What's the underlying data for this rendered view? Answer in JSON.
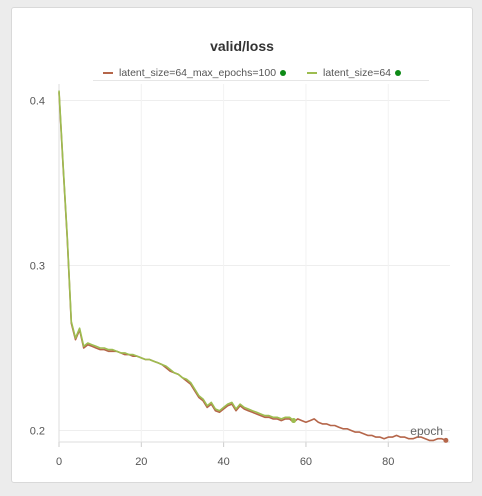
{
  "chart_data": {
    "type": "line",
    "title": "valid/loss",
    "xlabel": "epoch",
    "ylabel": "",
    "xlim": [
      0,
      95
    ],
    "ylim": [
      0.193,
      0.41
    ],
    "xticks": [
      0,
      20,
      40,
      60,
      80
    ],
    "yticks": [
      0.2,
      0.3,
      0.4
    ],
    "ytick_labels": [
      "0.2",
      "0.3",
      "0.4"
    ],
    "grid": true,
    "legend_position": "top",
    "series": [
      {
        "name": "latent_size=64_max_epochs=100",
        "color": "#b5664a",
        "x": [
          0,
          1,
          2,
          3,
          4,
          5,
          6,
          7,
          8,
          9,
          10,
          11,
          12,
          13,
          14,
          15,
          16,
          17,
          18,
          19,
          20,
          21,
          22,
          23,
          24,
          25,
          26,
          27,
          28,
          29,
          30,
          31,
          32,
          33,
          34,
          35,
          36,
          37,
          38,
          39,
          40,
          41,
          42,
          43,
          44,
          45,
          46,
          47,
          48,
          49,
          50,
          51,
          52,
          53,
          54,
          55,
          56,
          57,
          58,
          59,
          60,
          61,
          62,
          63,
          64,
          65,
          66,
          67,
          68,
          69,
          70,
          71,
          72,
          73,
          74,
          75,
          76,
          77,
          78,
          79,
          80,
          81,
          82,
          83,
          84,
          85,
          86,
          87,
          88,
          89,
          90,
          91,
          92,
          93,
          94
        ],
        "y": [
          0.405,
          0.36,
          0.317,
          0.265,
          0.255,
          0.261,
          0.25,
          0.252,
          0.251,
          0.25,
          0.249,
          0.249,
          0.248,
          0.248,
          0.248,
          0.247,
          0.246,
          0.246,
          0.245,
          0.245,
          0.244,
          0.243,
          0.243,
          0.242,
          0.241,
          0.24,
          0.238,
          0.236,
          0.235,
          0.234,
          0.232,
          0.23,
          0.228,
          0.224,
          0.22,
          0.218,
          0.214,
          0.216,
          0.212,
          0.211,
          0.213,
          0.215,
          0.216,
          0.212,
          0.215,
          0.213,
          0.212,
          0.211,
          0.21,
          0.209,
          0.208,
          0.208,
          0.207,
          0.207,
          0.206,
          0.207,
          0.207,
          0.205,
          0.207,
          0.206,
          0.205,
          0.206,
          0.207,
          0.205,
          0.204,
          0.204,
          0.203,
          0.203,
          0.202,
          0.201,
          0.201,
          0.2,
          0.199,
          0.199,
          0.198,
          0.197,
          0.197,
          0.196,
          0.196,
          0.195,
          0.196,
          0.196,
          0.197,
          0.196,
          0.196,
          0.195,
          0.195,
          0.196,
          0.196,
          0.195,
          0.194,
          0.194,
          0.195,
          0.195,
          0.194
        ]
      },
      {
        "name": "latent_size=64",
        "color": "#9dbd50",
        "x": [
          0,
          1,
          2,
          3,
          4,
          5,
          6,
          7,
          8,
          9,
          10,
          11,
          12,
          13,
          14,
          15,
          16,
          17,
          18,
          19,
          20,
          21,
          22,
          23,
          24,
          25,
          26,
          27,
          28,
          29,
          30,
          31,
          32,
          33,
          34,
          35,
          36,
          37,
          38,
          39,
          40,
          41,
          42,
          43,
          44,
          45,
          46,
          47,
          48,
          49,
          50,
          51,
          52,
          53,
          54,
          55,
          56,
          57
        ],
        "y": [
          0.406,
          0.361,
          0.318,
          0.266,
          0.256,
          0.262,
          0.251,
          0.253,
          0.252,
          0.251,
          0.25,
          0.25,
          0.249,
          0.249,
          0.248,
          0.247,
          0.247,
          0.246,
          0.246,
          0.245,
          0.244,
          0.243,
          0.243,
          0.242,
          0.241,
          0.24,
          0.239,
          0.237,
          0.235,
          0.234,
          0.232,
          0.231,
          0.229,
          0.225,
          0.221,
          0.219,
          0.215,
          0.217,
          0.213,
          0.212,
          0.214,
          0.216,
          0.217,
          0.213,
          0.216,
          0.214,
          0.213,
          0.212,
          0.211,
          0.21,
          0.209,
          0.209,
          0.208,
          0.208,
          0.207,
          0.208,
          0.208,
          0.206
        ]
      }
    ]
  }
}
